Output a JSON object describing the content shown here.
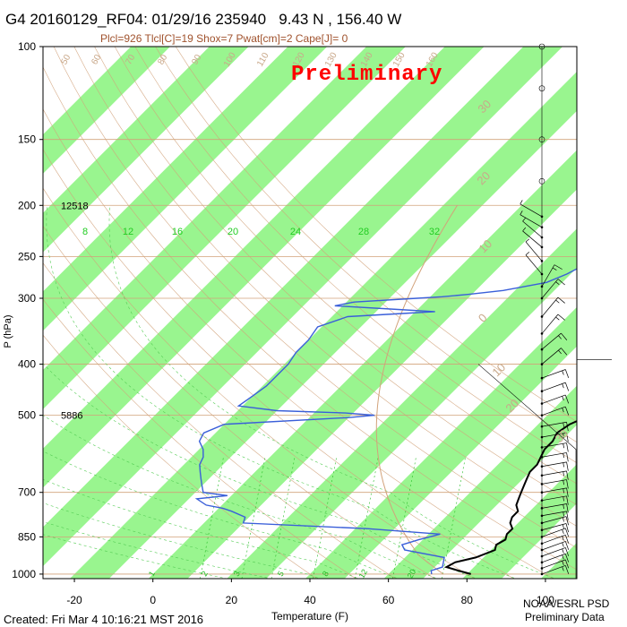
{
  "header": {
    "title": "G4 20160129_RF04: 01/29/16 235940   9.43 N , 156.40 W",
    "subtitle": "Plcl=926 Tlcl[C]=19 Shox=7 Pwat[cm]=2 Cape[J]= 0",
    "watermark": "Preliminary"
  },
  "footer": {
    "created": "Created: Fri Mar  4 10:16:21 MST 2016",
    "org": "NOAA/ESRL PSD",
    "status": "Preliminary Data"
  },
  "colors": {
    "band": "#99f58f",
    "temperature": "#000000",
    "dewpoint": "#3a5fd9",
    "dry_adiabat": "#d2a27a",
    "moist_adiabat": "#55cc55",
    "mixing_ratio": "#22bb22",
    "parcel": "#d2a27a",
    "wind": "#000000"
  },
  "chart_data": {
    "type": "skew-t",
    "title": "G4 20160129_RF04: 01/29/16 235940   9.43 N , 156.40 W",
    "xlabel": "Temperature (F)",
    "ylabel": "P (hPa)",
    "xlim": [
      -28,
      108
    ],
    "ylim_hpa": [
      1000,
      100
    ],
    "log_pressure": true,
    "x_ticks": [
      "-20",
      "0",
      "20",
      "40",
      "60",
      "80",
      "100"
    ],
    "x_tick_values": [
      -20,
      0,
      20,
      40,
      60,
      80,
      100
    ],
    "y_ticks": [
      "100",
      "150",
      "200",
      "250",
      "300",
      "400",
      "500",
      "700",
      "850",
      "1000"
    ],
    "y_tick_values": [
      100,
      150,
      200,
      250,
      300,
      400,
      500,
      700,
      850,
      1000
    ],
    "height_labels": [
      {
        "p": 200,
        "text": "12518"
      },
      {
        "p": 500,
        "text": "5886"
      }
    ],
    "mixing_ratio_top_labels": [
      {
        "x": 8,
        "text": "8"
      },
      {
        "x": 12,
        "text": "12"
      },
      {
        "x": 16,
        "text": "16"
      },
      {
        "x": 20,
        "text": "20"
      },
      {
        "x": 24,
        "text": "24"
      },
      {
        "x": 28,
        "text": "28"
      },
      {
        "x": 32,
        "text": "32"
      }
    ],
    "mixing_ratio_bottom_labels": [
      {
        "x": 1,
        "text": "1"
      },
      {
        "x": 2,
        "text": "2"
      },
      {
        "x": 3,
        "text": "3"
      },
      {
        "x": 5,
        "text": "5"
      },
      {
        "x": 8,
        "text": "8"
      },
      {
        "x": 12,
        "text": "12"
      },
      {
        "x": 20,
        "text": "20"
      }
    ],
    "dry_adiabat_labels": [
      "50",
      "60",
      "70",
      "80",
      "90",
      "100",
      "110",
      "120",
      "130",
      "140",
      "150",
      "160"
    ],
    "side_isotherm_labels": [
      "30",
      "20",
      "10",
      "0",
      "10",
      "20",
      "30"
    ],
    "series": [
      {
        "name": "Temperature",
        "points": [
          {
            "p": 1000,
            "t": 81
          },
          {
            "p": 985,
            "t": 77
          },
          {
            "p": 970,
            "t": 73
          },
          {
            "p": 950,
            "t": 74
          },
          {
            "p": 930,
            "t": 78
          },
          {
            "p": 900,
            "t": 81
          },
          {
            "p": 880,
            "t": 80
          },
          {
            "p": 860,
            "t": 81
          },
          {
            "p": 840,
            "t": 80
          },
          {
            "p": 820,
            "t": 80
          },
          {
            "p": 800,
            "t": 78
          },
          {
            "p": 780,
            "t": 77
          },
          {
            "p": 760,
            "t": 77
          },
          {
            "p": 740,
            "t": 75
          },
          {
            "p": 720,
            "t": 74
          },
          {
            "p": 700,
            "t": 73
          },
          {
            "p": 680,
            "t": 72
          },
          {
            "p": 660,
            "t": 71
          },
          {
            "p": 640,
            "t": 70
          },
          {
            "p": 620,
            "t": 70
          },
          {
            "p": 600,
            "t": 69
          },
          {
            "p": 580,
            "t": 68
          },
          {
            "p": 560,
            "t": 68
          },
          {
            "p": 540,
            "t": 67
          },
          {
            "p": 520,
            "t": 68
          },
          {
            "p": 500,
            "t": 71
          },
          {
            "p": 480,
            "t": 70
          },
          {
            "p": 460,
            "t": 71
          },
          {
            "p": 440,
            "t": 71
          },
          {
            "p": 420,
            "t": 70
          },
          {
            "p": 400,
            "t": 67
          },
          {
            "p": 380,
            "t": 64
          },
          {
            "p": 360,
            "t": 61
          },
          {
            "p": 340,
            "t": 58
          },
          {
            "p": 320,
            "t": 54
          },
          {
            "p": 300,
            "t": 51
          },
          {
            "p": 280,
            "t": 48
          },
          {
            "p": 260,
            "t": 45
          },
          {
            "p": 250,
            "t": 44
          },
          {
            "p": 240,
            "t": 42
          },
          {
            "p": 230,
            "t": 40
          },
          {
            "p": 220,
            "t": 38
          },
          {
            "p": 210,
            "t": 37
          },
          {
            "p": 200,
            "t": 36
          },
          {
            "p": 190,
            "t": 35
          }
        ]
      },
      {
        "name": "Dewpoint",
        "points": [
          {
            "p": 1000,
            "t": 71
          },
          {
            "p": 985,
            "t": 70
          },
          {
            "p": 970,
            "t": 72
          },
          {
            "p": 950,
            "t": 71
          },
          {
            "p": 930,
            "t": 70
          },
          {
            "p": 900,
            "t": 58
          },
          {
            "p": 880,
            "t": 56
          },
          {
            "p": 860,
            "t": 59
          },
          {
            "p": 850,
            "t": 61
          },
          {
            "p": 840,
            "t": 63
          },
          {
            "p": 820,
            "t": 43
          },
          {
            "p": 800,
            "t": 10
          },
          {
            "p": 780,
            "t": 9
          },
          {
            "p": 760,
            "t": 4
          },
          {
            "p": 750,
            "t": 1
          },
          {
            "p": 740,
            "t": -4
          },
          {
            "p": 720,
            "t": -8
          },
          {
            "p": 710,
            "t": -1
          },
          {
            "p": 700,
            "t": -8
          },
          {
            "p": 680,
            "t": -10
          },
          {
            "p": 660,
            "t": -12
          },
          {
            "p": 640,
            "t": -14
          },
          {
            "p": 620,
            "t": -16
          },
          {
            "p": 600,
            "t": -17
          },
          {
            "p": 580,
            "t": -19
          },
          {
            "p": 560,
            "t": -22
          },
          {
            "p": 540,
            "t": -23
          },
          {
            "p": 520,
            "t": -20
          },
          {
            "p": 505,
            "t": 10
          },
          {
            "p": 500,
            "t": 16
          },
          {
            "p": 495,
            "t": 8
          },
          {
            "p": 490,
            "t": -10
          },
          {
            "p": 480,
            "t": -21
          },
          {
            "p": 460,
            "t": -20
          },
          {
            "p": 440,
            "t": -19
          },
          {
            "p": 420,
            "t": -19
          },
          {
            "p": 400,
            "t": -19
          },
          {
            "p": 380,
            "t": -20
          },
          {
            "p": 360,
            "t": -20
          },
          {
            "p": 340,
            "t": -21
          },
          {
            "p": 325,
            "t": -16
          },
          {
            "p": 320,
            "t": -1
          },
          {
            "p": 318,
            "t": 5
          },
          {
            "p": 315,
            "t": -5
          },
          {
            "p": 310,
            "t": -22
          },
          {
            "p": 305,
            "t": -18
          },
          {
            "p": 300,
            "t": -3
          },
          {
            "p": 298,
            "t": 3
          },
          {
            "p": 295,
            "t": 9
          },
          {
            "p": 290,
            "t": 17
          },
          {
            "p": 280,
            "t": 26
          },
          {
            "p": 270,
            "t": 29
          },
          {
            "p": 260,
            "t": 31
          },
          {
            "p": 250,
            "t": 32
          },
          {
            "p": 240,
            "t": 30
          },
          {
            "p": 230,
            "t": 29
          },
          {
            "p": 220,
            "t": 27
          },
          {
            "p": 210,
            "t": 26
          }
        ]
      }
    ],
    "wind_barbs": [
      {
        "p": 1000,
        "dir": 70,
        "spd": 15
      },
      {
        "p": 975,
        "dir": 70,
        "spd": 15
      },
      {
        "p": 950,
        "dir": 70,
        "spd": 15
      },
      {
        "p": 925,
        "dir": 70,
        "spd": 15
      },
      {
        "p": 900,
        "dir": 70,
        "spd": 15
      },
      {
        "p": 875,
        "dir": 70,
        "spd": 15
      },
      {
        "p": 850,
        "dir": 70,
        "spd": 15
      },
      {
        "p": 825,
        "dir": 75,
        "spd": 15
      },
      {
        "p": 800,
        "dir": 75,
        "spd": 15
      },
      {
        "p": 775,
        "dir": 80,
        "spd": 15
      },
      {
        "p": 750,
        "dir": 80,
        "spd": 15
      },
      {
        "p": 725,
        "dir": 80,
        "spd": 15
      },
      {
        "p": 700,
        "dir": 80,
        "spd": 15
      },
      {
        "p": 675,
        "dir": 80,
        "spd": 15
      },
      {
        "p": 650,
        "dir": 80,
        "spd": 15
      },
      {
        "p": 625,
        "dir": 80,
        "spd": 15
      },
      {
        "p": 600,
        "dir": 80,
        "spd": 15
      },
      {
        "p": 575,
        "dir": 80,
        "spd": 15
      },
      {
        "p": 550,
        "dir": 80,
        "spd": 15
      },
      {
        "p": 525,
        "dir": 80,
        "spd": 15
      },
      {
        "p": 500,
        "dir": 70,
        "spd": 15
      },
      {
        "p": 475,
        "dir": 70,
        "spd": 15
      },
      {
        "p": 450,
        "dir": 70,
        "spd": 15
      },
      {
        "p": 425,
        "dir": 70,
        "spd": 15
      },
      {
        "p": 400,
        "dir": 50,
        "spd": 15
      },
      {
        "p": 375,
        "dir": 50,
        "spd": 15
      },
      {
        "p": 350,
        "dir": 40,
        "spd": 15
      },
      {
        "p": 325,
        "dir": 40,
        "spd": 15
      },
      {
        "p": 300,
        "dir": 40,
        "spd": 15
      },
      {
        "p": 285,
        "dir": 30,
        "spd": 15
      },
      {
        "p": 270,
        "dir": 320,
        "spd": 5
      },
      {
        "p": 255,
        "dir": 320,
        "spd": 5
      },
      {
        "p": 240,
        "dir": 310,
        "spd": 5
      },
      {
        "p": 230,
        "dir": 310,
        "spd": 5
      },
      {
        "p": 220,
        "dir": 300,
        "spd": 5
      },
      {
        "p": 210,
        "dir": 300,
        "spd": 5
      }
    ],
    "calm_levels_hpa": [
      100,
      120,
      150,
      180
    ],
    "grid": true
  }
}
